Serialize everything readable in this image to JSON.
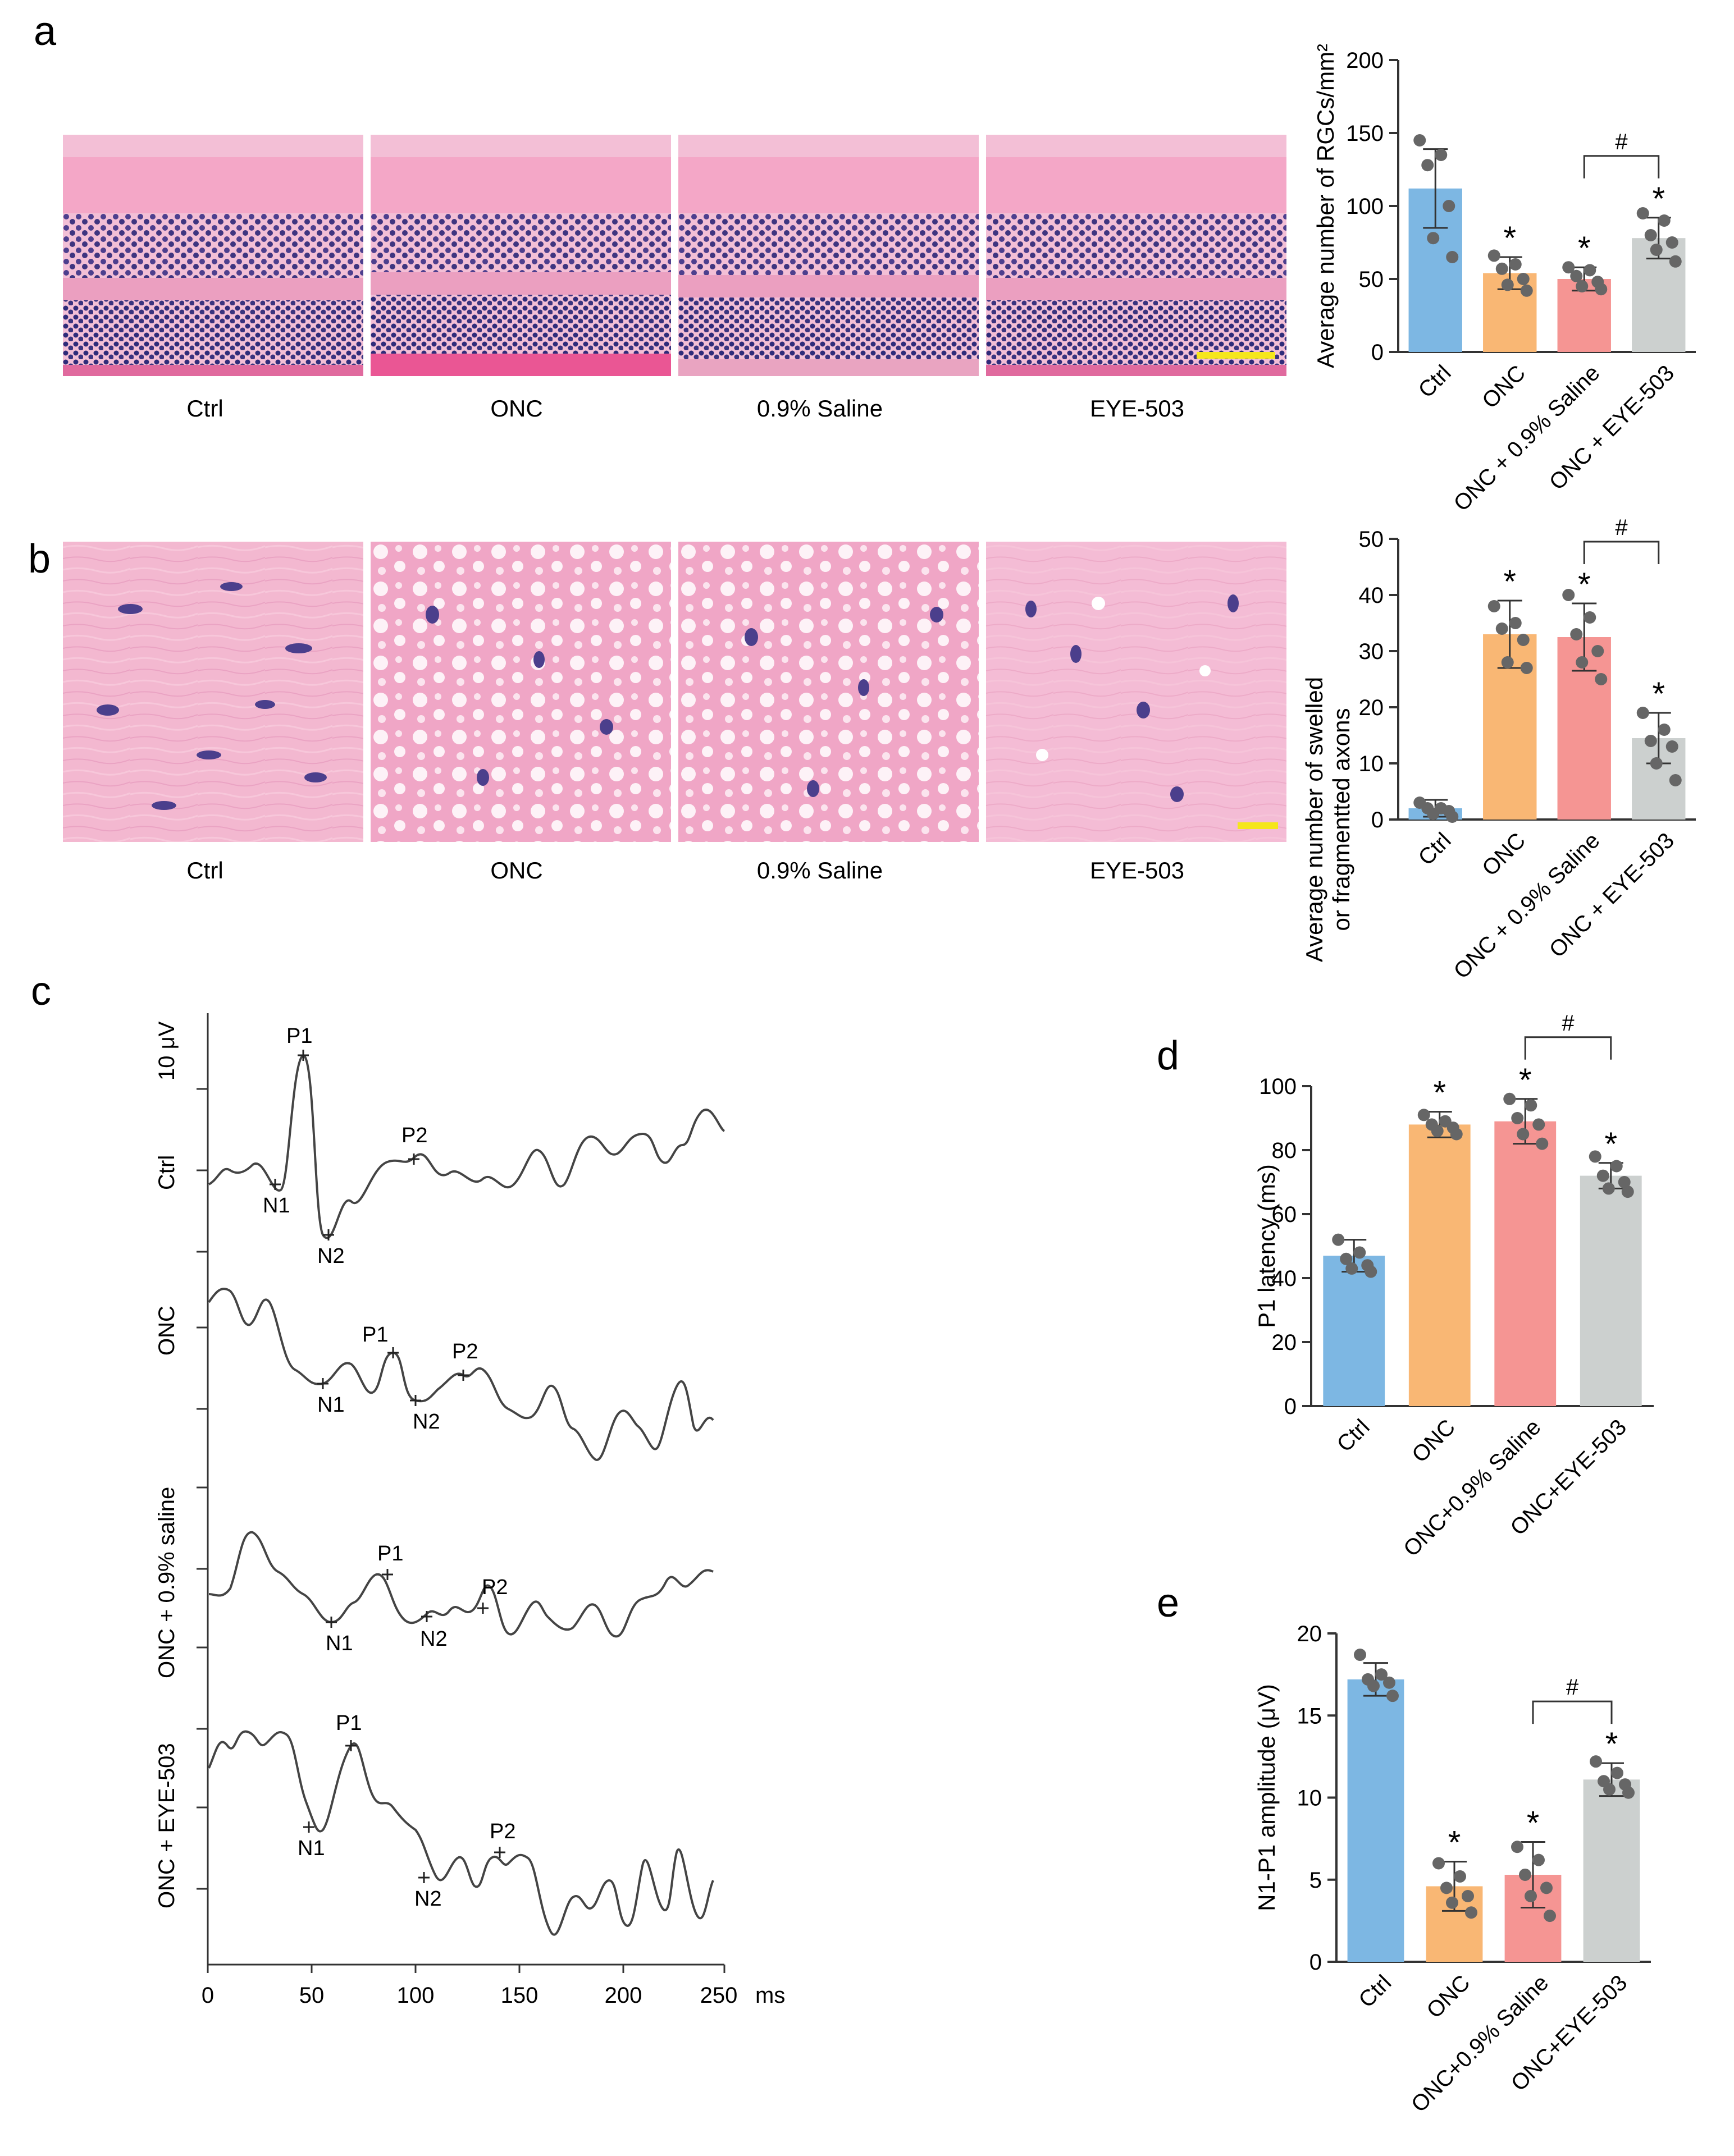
{
  "panel_labels": {
    "a": "a",
    "b": "b",
    "c": "c",
    "d": "d",
    "e": "e"
  },
  "colors": {
    "ctrl": "#7db7e3",
    "onc": "#f9b774",
    "saline": "#f59593",
    "eye503": "#ccd0cf",
    "dot": "#666666",
    "axis": "#333333",
    "he_pink": "#f2a8c8",
    "nuclei": "#4b3f8c",
    "scale_bar": "#f5e61b"
  },
  "panel_a": {
    "images": [
      {
        "caption": "Ctrl",
        "icon": "retina-he-micrograph"
      },
      {
        "caption": "ONC",
        "icon": "retina-he-micrograph"
      },
      {
        "caption": "0.9% Saline",
        "icon": "retina-he-micrograph"
      },
      {
        "caption": "EYE-503",
        "icon": "retina-he-micrograph"
      }
    ],
    "significance": {
      "star": "*",
      "hash": "#"
    }
  },
  "panel_b": {
    "images": [
      {
        "caption": "Ctrl",
        "icon": "optic-nerve-he-micrograph"
      },
      {
        "caption": "ONC",
        "icon": "optic-nerve-he-micrograph"
      },
      {
        "caption": "0.9% Saline",
        "icon": "optic-nerve-he-micrograph"
      },
      {
        "caption": "EYE-503",
        "icon": "optic-nerve-he-micrograph"
      }
    ]
  },
  "panel_c": {
    "scale_label": "10 μV",
    "x_unit": "ms",
    "x_ticks": [
      "0",
      "50",
      "100",
      "150",
      "200",
      "250"
    ],
    "traces": [
      {
        "label": "Ctrl",
        "peaks": {
          "N1": "N1",
          "P1": "P1",
          "N2": "N2",
          "P2": "P2"
        }
      },
      {
        "label": "ONC",
        "peaks": {
          "N1": "N1",
          "P1": "P1",
          "N2": "N2",
          "P2": "P2"
        }
      },
      {
        "label": "ONC + 0.9% saline",
        "peaks": {
          "N1": "N1",
          "P1": "P1",
          "N2": "N2",
          "P2": "P2"
        }
      },
      {
        "label": "ONC + EYE-503",
        "peaks": {
          "N1": "N1",
          "P1": "P1",
          "N2": "N2",
          "P2": "P2"
        }
      }
    ]
  },
  "chart_data": [
    {
      "id": "a",
      "type": "bar",
      "ylabel": "Average number of RGCs/mm²",
      "categories": [
        "Ctrl",
        "ONC",
        "ONC + 0.9% Saline",
        "ONC + EYE-503"
      ],
      "values": [
        112,
        54,
        50,
        78
      ],
      "errors": [
        27,
        11,
        8,
        14
      ],
      "ylim": [
        0,
        200
      ],
      "yticks": [
        "0",
        "50",
        "100",
        "150",
        "200"
      ],
      "points": [
        [
          145,
          135,
          128,
          100,
          78,
          65
        ],
        [
          66,
          60,
          57,
          50,
          46,
          42
        ],
        [
          58,
          56,
          52,
          48,
          45,
          43
        ],
        [
          95,
          90,
          80,
          75,
          70,
          62
        ]
      ],
      "stars": [
        false,
        true,
        true,
        true
      ],
      "bracket": {
        "from": 2,
        "to": 3,
        "label": "#"
      }
    },
    {
      "id": "b",
      "type": "bar",
      "ylabel": [
        "Average number of swelled",
        "or fragmentted axons"
      ],
      "categories": [
        "Ctrl",
        "ONC",
        "ONC + 0.9% Saline",
        "ONC + EYE-503"
      ],
      "values": [
        2,
        33,
        32.5,
        14.5
      ],
      "errors": [
        1.5,
        6,
        6,
        4.5
      ],
      "ylim": [
        0,
        50
      ],
      "yticks": [
        "0",
        "10",
        "20",
        "30",
        "40",
        "50"
      ],
      "points": [
        [
          3,
          2,
          2,
          1.5,
          1,
          0.5
        ],
        [
          38,
          35,
          34,
          32,
          28,
          27
        ],
        [
          40,
          36,
          33,
          30,
          28,
          25
        ],
        [
          19,
          16,
          14,
          13,
          10,
          7
        ]
      ],
      "stars": [
        false,
        true,
        true,
        true
      ],
      "bracket": {
        "from": 2,
        "to": 3,
        "label": "#"
      }
    },
    {
      "id": "d",
      "type": "bar",
      "ylabel": "P1 latency (ms)",
      "categories": [
        "Ctrl",
        "ONC",
        "ONC+0.9% Saline",
        "ONC+EYE-503"
      ],
      "values": [
        47,
        88,
        89,
        72
      ],
      "errors": [
        5,
        4,
        7,
        4
      ],
      "ylim": [
        0,
        100
      ],
      "yticks": [
        "0",
        "20",
        "40",
        "60",
        "80",
        "100"
      ],
      "points": [
        [
          52,
          48,
          46,
          44,
          43,
          42
        ],
        [
          91,
          89,
          88,
          87,
          86,
          85
        ],
        [
          96,
          94,
          90,
          88,
          85,
          82
        ],
        [
          78,
          75,
          72,
          70,
          68,
          67
        ]
      ],
      "stars": [
        false,
        true,
        true,
        true
      ],
      "bracket": {
        "from": 2,
        "to": 3,
        "label": "#"
      }
    },
    {
      "id": "e",
      "type": "bar",
      "ylabel": "N1-P1 amplitude (μV)",
      "categories": [
        "Ctrl",
        "ONC",
        "ONC+0.9% Saline",
        "ONC+EYE-503"
      ],
      "values": [
        17.2,
        4.6,
        5.3,
        11.1
      ],
      "errors": [
        1,
        1.5,
        2,
        1
      ],
      "ylim": [
        0,
        20
      ],
      "yticks": [
        "0",
        "5",
        "10",
        "15",
        "20"
      ],
      "points": [
        [
          18.7,
          17.5,
          17.2,
          17.0,
          16.8,
          16.2
        ],
        [
          6.0,
          5.2,
          4.5,
          4.0,
          3.6,
          3.0
        ],
        [
          7.0,
          6.2,
          5.3,
          4.5,
          4.0,
          2.8
        ],
        [
          12.2,
          11.5,
          11.0,
          10.8,
          10.5,
          10.3
        ]
      ],
      "stars": [
        false,
        true,
        true,
        true
      ],
      "bracket": {
        "from": 2,
        "to": 3,
        "label": "#"
      }
    }
  ]
}
